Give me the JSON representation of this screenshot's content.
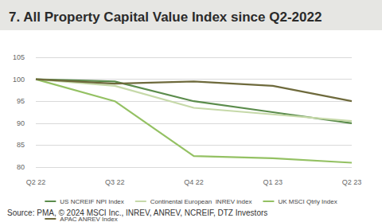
{
  "chart_data": {
    "type": "line",
    "title": "7. All Property Capital Value Index since Q2-2022",
    "source": "Source: PMA, © 2024 MSCI Inc., INREV, ANREV, NCREIF, DTZ Investors",
    "categories": [
      "Q2 22",
      "Q3 22",
      "Q4 22",
      "Q1 23",
      "Q2 23"
    ],
    "series": [
      {
        "name": "US NCREIF NPI Index",
        "color": "#5b8c4c",
        "values": [
          100,
          99.5,
          95,
          92.5,
          90
        ]
      },
      {
        "name": "Continental European  INREV index",
        "color": "#c6d9a9",
        "values": [
          100,
          98.5,
          93.5,
          92,
          90.5
        ]
      },
      {
        "name": "UK MSCI Qtrly Index",
        "color": "#94c163",
        "values": [
          100,
          95,
          82.5,
          82,
          81
        ]
      },
      {
        "name": "APAC ANREV Index",
        "color": "#6e6a3c",
        "values": [
          100,
          99,
          99.5,
          98.5,
          95
        ]
      }
    ],
    "ylim": [
      80,
      105
    ],
    "yticks": [
      80,
      85,
      90,
      95,
      100,
      105
    ],
    "grid": true,
    "legend": "bottom"
  }
}
